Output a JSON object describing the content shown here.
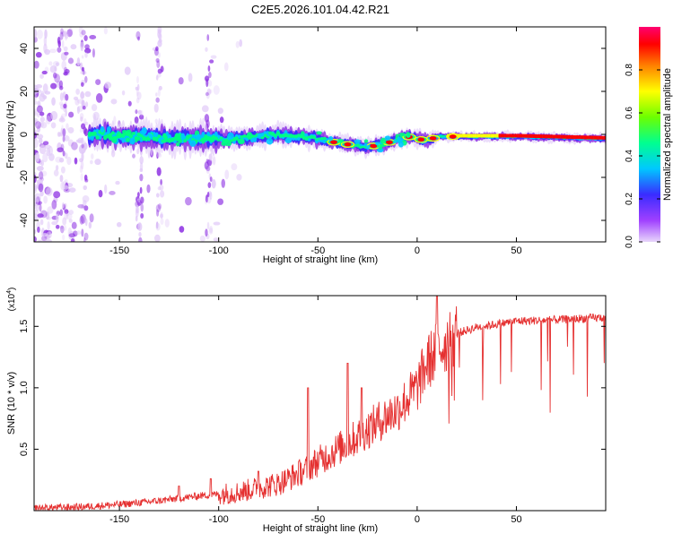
{
  "title": "C2E5.2026.101.04.42.R21",
  "chart_data": [
    {
      "type": "heatmap",
      "xlabel": "Height of straight line (km)",
      "ylabel": "Frequency (Hz)",
      "xlim": [
        -193,
        95
      ],
      "ylim": [
        -50,
        50
      ],
      "xticks": [
        -150,
        -100,
        -50,
        0,
        50
      ],
      "yticks": [
        -40,
        -20,
        0,
        20,
        40
      ],
      "colorbar": {
        "label": "Normalized spectral amplitude",
        "range": [
          0,
          1
        ],
        "ticks": [
          "0.0",
          "0.2",
          "0.4",
          "0.6",
          "0.8"
        ],
        "colors": [
          "#e0c8f8",
          "#8a2be2",
          "#3030ff",
          "#00c8ff",
          "#00ff80",
          "#80ff00",
          "#ffff00",
          "#ff8000",
          "#ff0000",
          "#ff0060"
        ]
      },
      "ridge_center_hz": [
        {
          "x": -165,
          "y": 0
        },
        {
          "x": -120,
          "y": -2
        },
        {
          "x": -90,
          "y": -2
        },
        {
          "x": -70,
          "y": 0
        },
        {
          "x": -50,
          "y": -2
        },
        {
          "x": -40,
          "y": -4
        },
        {
          "x": -25,
          "y": -6
        },
        {
          "x": -15,
          "y": -4
        },
        {
          "x": -5,
          "y": -1
        },
        {
          "x": 5,
          "y": -3
        },
        {
          "x": 10,
          "y": -1
        },
        {
          "x": 20,
          "y": -1
        },
        {
          "x": 50,
          "y": -1
        },
        {
          "x": 95,
          "y": -2
        }
      ]
    },
    {
      "type": "line",
      "xlabel": "Height of straight line (km)",
      "ylabel": "SNR (10 * v/v)",
      "y_multiplier": "(x10",
      "y_multiplier_exp": "4",
      "y_multiplier_close": ")",
      "xlim": [
        -193,
        95
      ],
      "ylim": [
        0,
        1.75
      ],
      "xticks": [
        -150,
        -100,
        -50,
        0,
        50
      ],
      "yticks": [
        "0.5",
        "1.0",
        "1.5"
      ],
      "series": [
        {
          "name": "SNR",
          "color": "#e53030",
          "envelope": [
            {
              "x": -193,
              "y": 0.02
            },
            {
              "x": -170,
              "y": 0.03
            },
            {
              "x": -150,
              "y": 0.05
            },
            {
              "x": -130,
              "y": 0.08
            },
            {
              "x": -110,
              "y": 0.12
            },
            {
              "x": -90,
              "y": 0.15
            },
            {
              "x": -70,
              "y": 0.22
            },
            {
              "x": -60,
              "y": 0.3
            },
            {
              "x": -45,
              "y": 0.45
            },
            {
              "x": -30,
              "y": 0.6
            },
            {
              "x": -20,
              "y": 0.72
            },
            {
              "x": -10,
              "y": 0.82
            },
            {
              "x": 0,
              "y": 1.0
            },
            {
              "x": 5,
              "y": 1.2
            },
            {
              "x": 10,
              "y": 1.3
            },
            {
              "x": 20,
              "y": 1.45
            },
            {
              "x": 30,
              "y": 1.5
            },
            {
              "x": 50,
              "y": 1.55
            },
            {
              "x": 70,
              "y": 1.56
            },
            {
              "x": 95,
              "y": 1.58
            }
          ],
          "spikes": [
            {
              "x": -120,
              "y": 0.2
            },
            {
              "x": -104,
              "y": 0.26
            },
            {
              "x": -80,
              "y": 0.32
            },
            {
              "x": -55,
              "y": 1.0
            },
            {
              "x": -35,
              "y": 1.2
            },
            {
              "x": -28,
              "y": 1.0
            },
            {
              "x": 10,
              "y": 1.75
            }
          ]
        }
      ]
    }
  ]
}
